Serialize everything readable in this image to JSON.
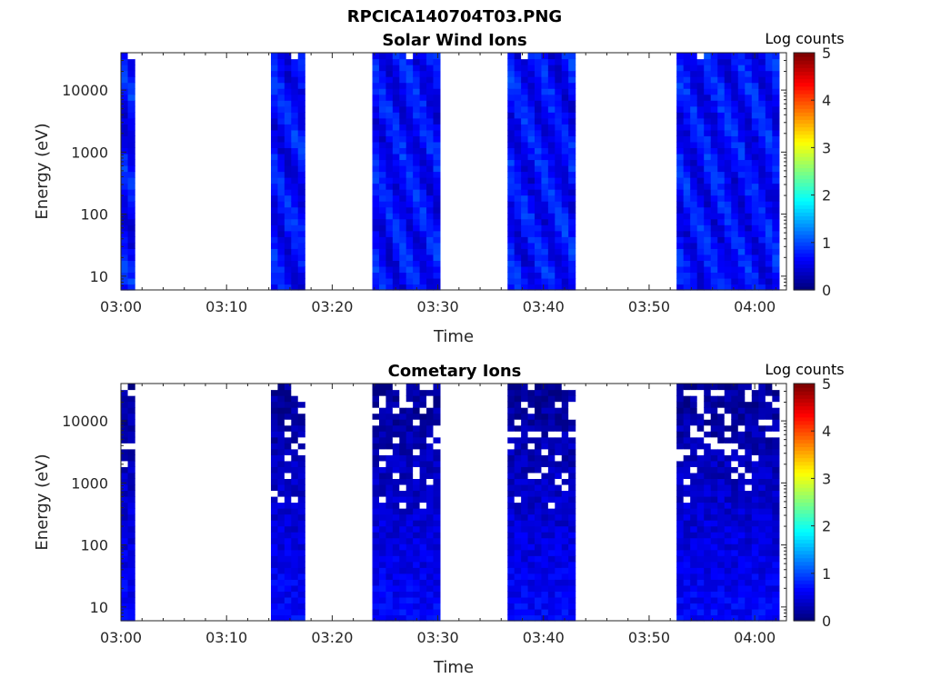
{
  "figure_title": "RPCICA140704T03.PNG",
  "chart_data": [
    {
      "type": "heatmap",
      "title": "Solar Wind Ions",
      "xlabel": "Time",
      "ylabel": "Energy (eV)",
      "x_ticks": [
        "03:00",
        "03:10",
        "03:20",
        "03:30",
        "03:40",
        "03:50",
        "04:00"
      ],
      "xlim_minutes": [
        0,
        63
      ],
      "y_scale": "log",
      "y_ticks": [
        "10",
        "100",
        "1000",
        "10000"
      ],
      "ylim": [
        6,
        40000
      ],
      "colorbar": {
        "label": "Log counts",
        "ticks": [
          "0",
          "1",
          "2",
          "3",
          "4",
          "5"
        ],
        "range": [
          0,
          5
        ],
        "colormap": "jet"
      },
      "data_intervals": [
        {
          "start": "03:00",
          "end": "03:01.3"
        },
        {
          "start": "03:14.2",
          "end": "03:17.4"
        },
        {
          "start": "03:23.8",
          "end": "03:30.2"
        },
        {
          "start": "03:36.6",
          "end": "03:43.0"
        },
        {
          "start": "03:52.6",
          "end": "04:02.3"
        }
      ],
      "typical_log_counts": "0.4-0.9",
      "gaps": "sparse"
    },
    {
      "type": "heatmap",
      "title": "Cometary Ions",
      "xlabel": "Time",
      "ylabel": "Energy (eV)",
      "x_ticks": [
        "03:00",
        "03:10",
        "03:20",
        "03:30",
        "03:40",
        "03:50",
        "04:00"
      ],
      "xlim_minutes": [
        0,
        63
      ],
      "y_scale": "log",
      "y_ticks": [
        "10",
        "100",
        "1000",
        "10000"
      ],
      "ylim": [
        6,
        40000
      ],
      "colorbar": {
        "label": "Log counts",
        "ticks": [
          "0",
          "1",
          "2",
          "3",
          "4",
          "5"
        ],
        "range": [
          0,
          5
        ],
        "colormap": "jet"
      },
      "data_intervals": [
        {
          "start": "03:00",
          "end": "03:01.3"
        },
        {
          "start": "03:14.2",
          "end": "03:17.4"
        },
        {
          "start": "03:23.8",
          "end": "03:30.2"
        },
        {
          "start": "03:36.6",
          "end": "03:43.0"
        },
        {
          "start": "03:52.6",
          "end": "04:02.3"
        }
      ],
      "typical_log_counts": "0.1-0.7",
      "gaps": "frequent at high energy"
    }
  ]
}
